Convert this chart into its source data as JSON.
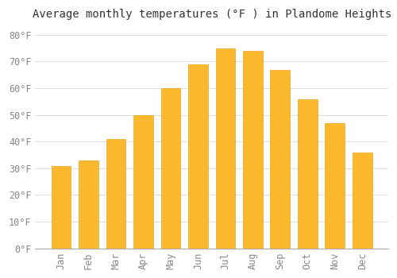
{
  "title": "Average monthly temperatures (°F ) in Plandome Heights",
  "months": [
    "Jan",
    "Feb",
    "Mar",
    "Apr",
    "May",
    "Jun",
    "Jul",
    "Aug",
    "Sep",
    "Oct",
    "Nov",
    "Dec"
  ],
  "values": [
    31,
    33,
    41,
    50,
    60,
    69,
    75,
    74,
    67,
    56,
    47,
    36
  ],
  "bar_color": "#FDB92E",
  "bar_edge_color": "#E8A820",
  "background_color": "#FFFFFF",
  "grid_color": "#DDDDDD",
  "ylim": [
    0,
    84
  ],
  "yticks": [
    0,
    10,
    20,
    30,
    40,
    50,
    60,
    70,
    80
  ],
  "ytick_labels": [
    "0°F",
    "10°F",
    "20°F",
    "30°F",
    "40°F",
    "50°F",
    "60°F",
    "70°F",
    "80°F"
  ],
  "title_fontsize": 10,
  "tick_fontsize": 8.5,
  "tick_label_color": "#888888",
  "title_color": "#333333",
  "bar_width": 0.72
}
